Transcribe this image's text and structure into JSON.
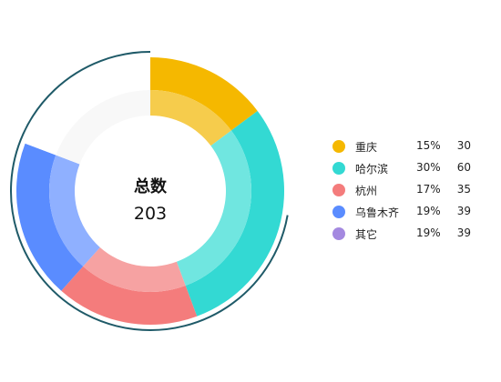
{
  "chart_data": {
    "type": "pie",
    "title": "",
    "center_label": "总数",
    "total": "203",
    "slices": [
      {
        "name": "重庆",
        "percent": "15%",
        "value": 30,
        "color": "#f5b800",
        "inner_color": "#f6cc4c"
      },
      {
        "name": "哈尔滨",
        "percent": "30%",
        "value": 60,
        "color": "#33d9d3",
        "inner_color": "#70e6e0"
      },
      {
        "name": "杭州",
        "percent": "17%",
        "value": 35,
        "color": "#f47c7c",
        "inner_color": "#f6a2a2"
      },
      {
        "name": "乌鲁木齐",
        "percent": "19%",
        "value": 39,
        "color": "#5a8cff",
        "inner_color": "#8fb0ff"
      },
      {
        "name": "其它",
        "percent": "19%",
        "value": 39,
        "color": "#ffffff",
        "inner_color": "#f8f8f8",
        "legend_color": "#a489e0"
      }
    ],
    "outer_arc_color": "#1f5a68",
    "legend_position": "right"
  }
}
